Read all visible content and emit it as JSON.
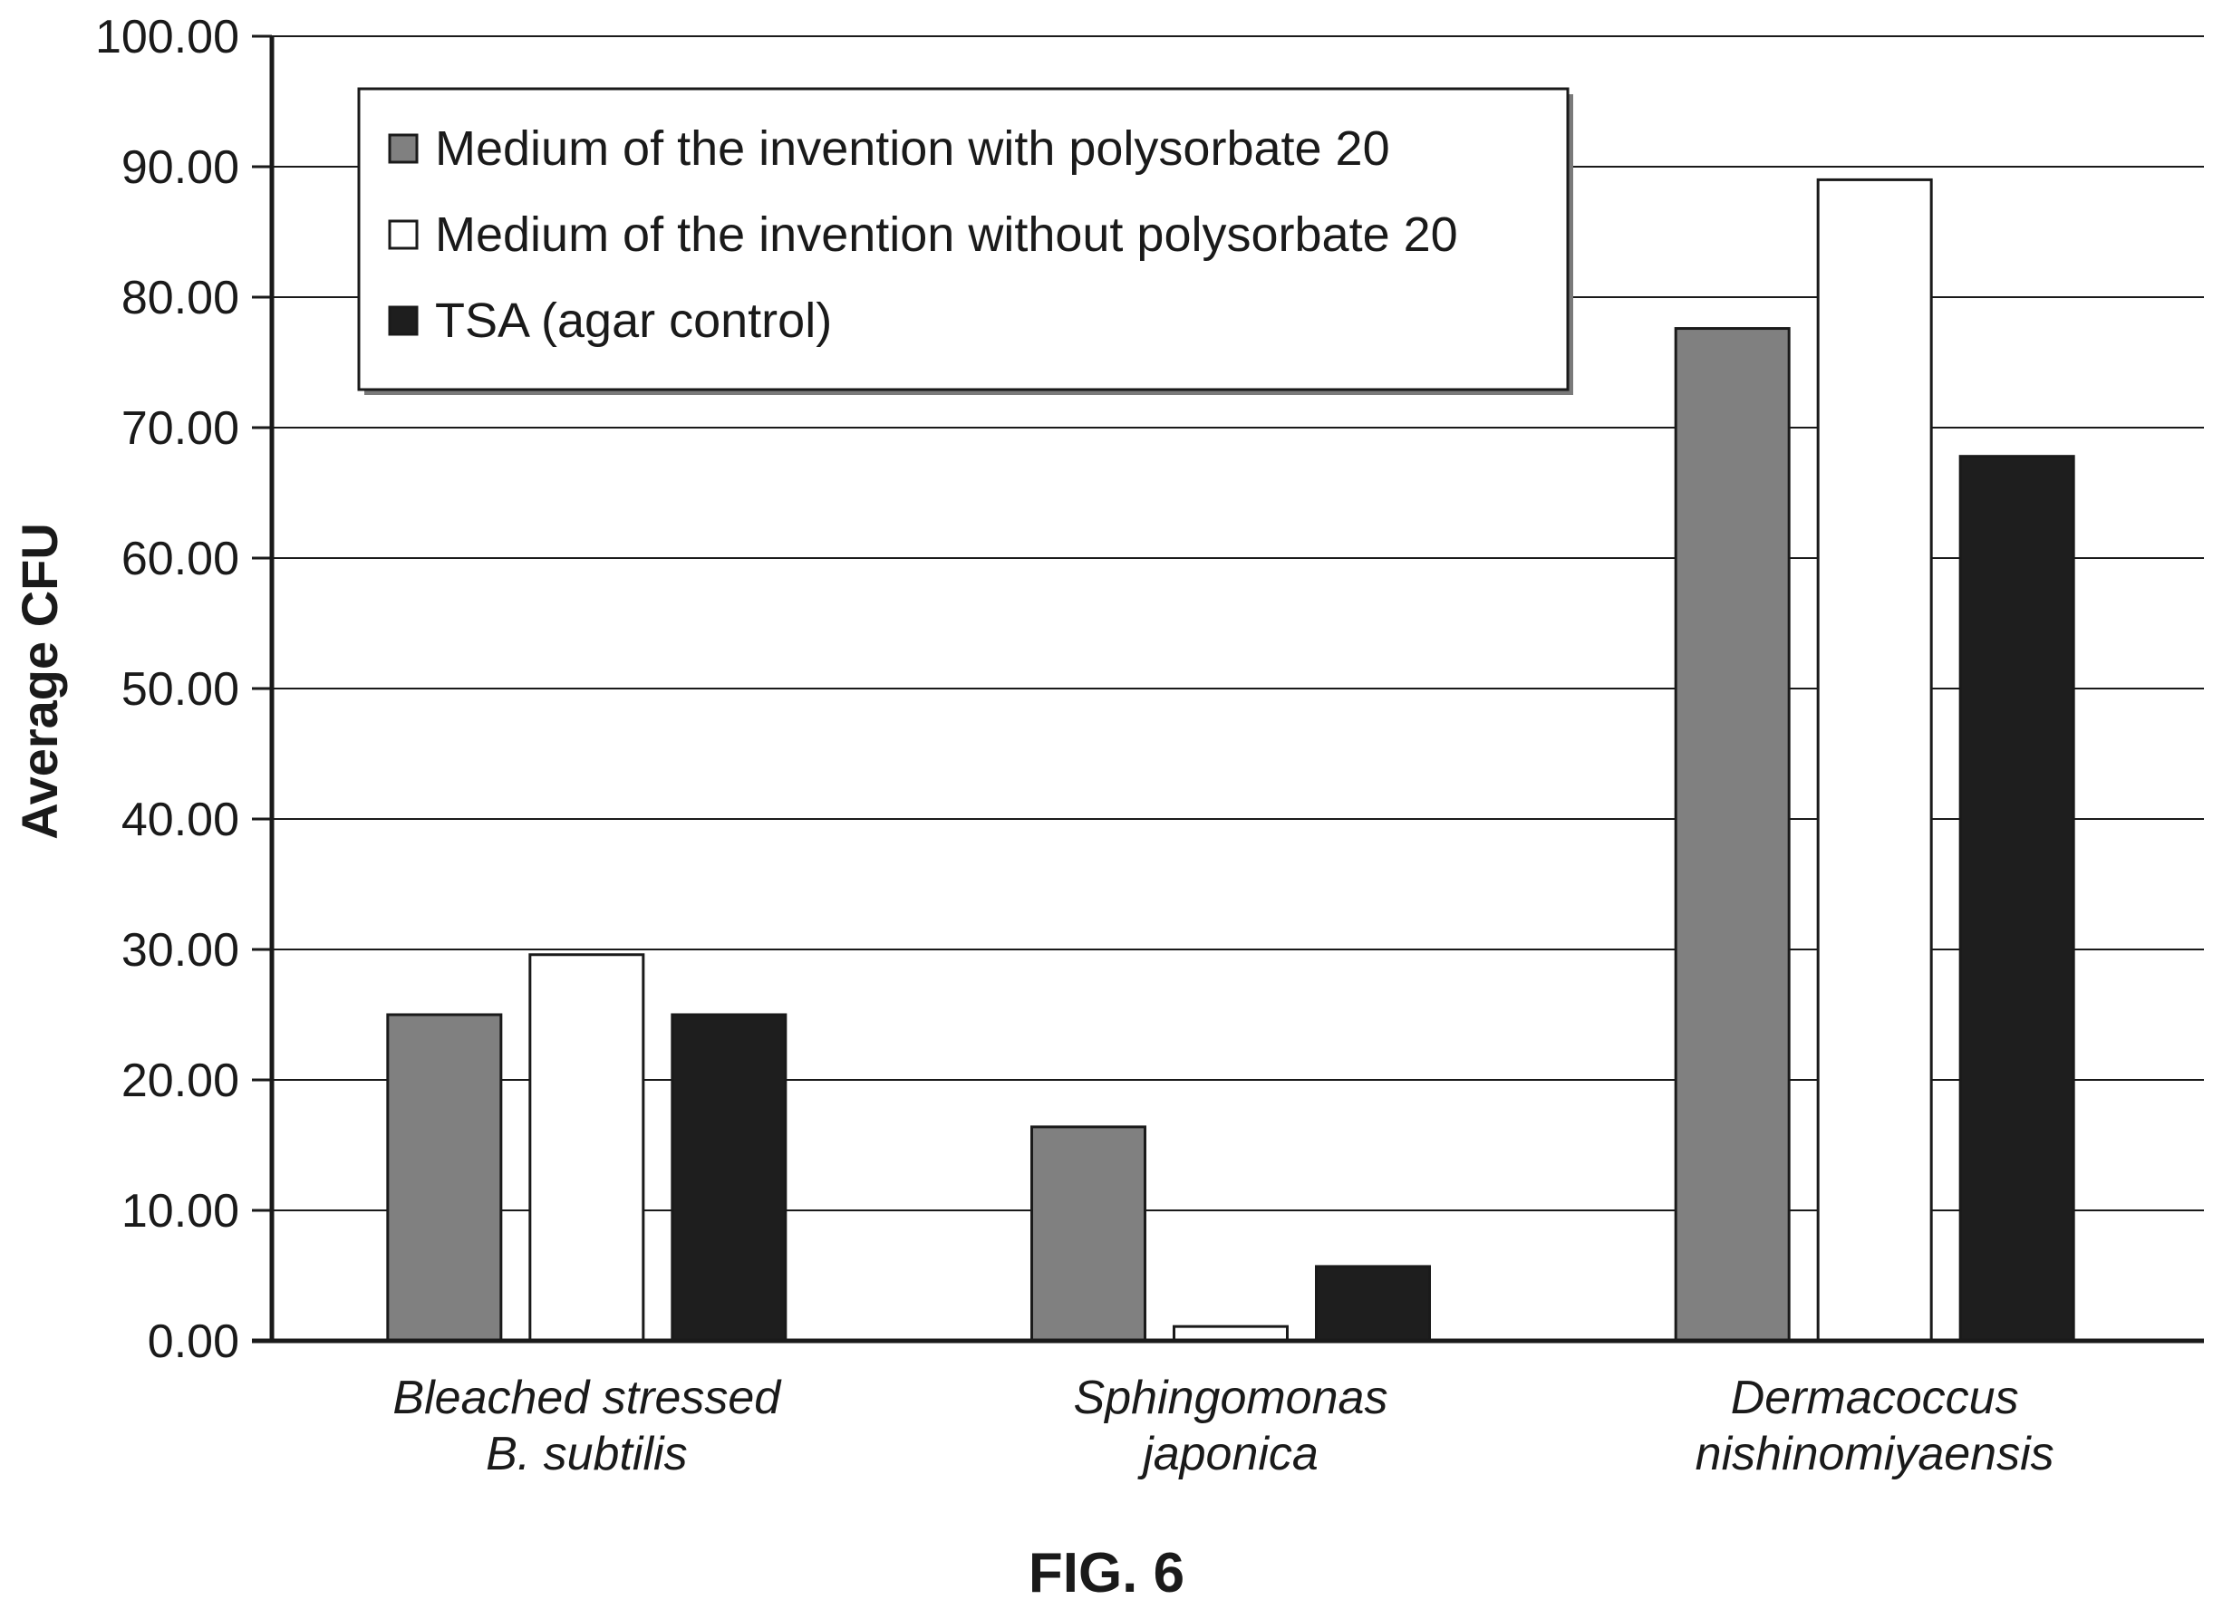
{
  "chart_data": {
    "type": "bar",
    "ylabel": "Average CFU",
    "ylim": [
      0,
      100
    ],
    "ytick_step": 10,
    "ytick_labels": [
      "0.00",
      "10.00",
      "20.00",
      "30.00",
      "40.00",
      "50.00",
      "60.00",
      "70.00",
      "80.00",
      "90.00",
      "100.00"
    ],
    "grid": true,
    "legend_position": "top-left",
    "categories": [
      [
        "Bleached stressed",
        "B. subtilis"
      ],
      [
        "Sphingomonas",
        "japonica"
      ],
      [
        "Dermacoccus",
        "nishinomiyaensis"
      ]
    ],
    "series": [
      {
        "name": "Medium of the invention with polysorbate 20",
        "color": "#808080",
        "values": [
          25.0,
          16.4,
          77.6
        ]
      },
      {
        "name": "Medium of the invention without polysorbate 20",
        "color": "#ffffff",
        "values": [
          29.6,
          1.1,
          89.0
        ]
      },
      {
        "name": "TSA (agar control)",
        "color": "#1e1e1e",
        "values": [
          25.0,
          5.7,
          67.8
        ]
      }
    ]
  },
  "caption": "FIG. 6"
}
